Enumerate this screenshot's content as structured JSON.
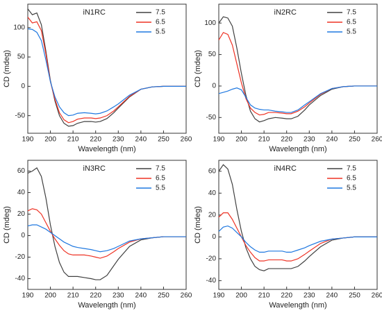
{
  "chart_data": [
    {
      "type": "line",
      "title": "iN1RC",
      "x_label": "Wavelength (nm)",
      "y_label": "CD (mdeg)",
      "x": [
        190,
        192,
        194,
        196,
        198,
        200,
        202,
        204,
        206,
        208,
        210,
        212,
        215,
        218,
        220,
        222,
        225,
        228,
        230,
        235,
        240,
        245,
        250,
        255,
        260
      ],
      "xlim": [
        190,
        260
      ],
      "xticks": [
        190,
        200,
        210,
        220,
        230,
        240,
        250,
        260
      ],
      "ylim": [
        -80,
        140
      ],
      "yticks": [
        -50,
        0,
        50,
        100
      ],
      "legend": "upper right",
      "series": [
        {
          "name": "7.5",
          "color": "#404040",
          "values": [
            132,
            122,
            125,
            105,
            60,
            10,
            -25,
            -50,
            -63,
            -68,
            -67,
            -63,
            -60,
            -60,
            -61,
            -60,
            -55,
            -45,
            -37,
            -18,
            -5,
            -1,
            0,
            0,
            0
          ]
        },
        {
          "name": "6.5",
          "color": "#ee3224",
          "values": [
            118,
            108,
            110,
            95,
            55,
            8,
            -22,
            -45,
            -57,
            -62,
            -60,
            -56,
            -54,
            -54,
            -55,
            -54,
            -50,
            -42,
            -35,
            -17,
            -5,
            -1,
            0,
            0,
            0
          ]
        },
        {
          "name": "5.5",
          "color": "#1f78e0",
          "values": [
            98,
            97,
            92,
            78,
            45,
            8,
            -18,
            -35,
            -45,
            -50,
            -49,
            -46,
            -45,
            -46,
            -47,
            -46,
            -42,
            -35,
            -30,
            -15,
            -5,
            -1,
            0,
            0,
            0
          ]
        }
      ]
    },
    {
      "type": "line",
      "title": "iN2RC",
      "x_label": "Wavelength (nm)",
      "y_label": "CD (mdeg)",
      "x": [
        190,
        192,
        194,
        196,
        198,
        200,
        202,
        204,
        206,
        208,
        210,
        212,
        215,
        218,
        220,
        222,
        225,
        228,
        230,
        235,
        240,
        245,
        250,
        255,
        260
      ],
      "xlim": [
        190,
        260
      ],
      "xticks": [
        190,
        200,
        210,
        220,
        230,
        240,
        250,
        260
      ],
      "ylim": [
        -75,
        130
      ],
      "yticks": [
        -50,
        0,
        50,
        100
      ],
      "legend": "upper right",
      "series": [
        {
          "name": "7.5",
          "color": "#404040",
          "values": [
            100,
            110,
            108,
            95,
            60,
            20,
            -15,
            -40,
            -52,
            -57,
            -55,
            -52,
            -50,
            -51,
            -52,
            -52,
            -48,
            -38,
            -30,
            -15,
            -5,
            -1,
            0,
            0,
            0
          ]
        },
        {
          "name": "6.5",
          "color": "#ee3224",
          "values": [
            73,
            85,
            82,
            65,
            35,
            5,
            -20,
            -35,
            -42,
            -46,
            -45,
            -42,
            -42,
            -43,
            -44,
            -44,
            -40,
            -33,
            -27,
            -13,
            -4,
            -1,
            0,
            0,
            0
          ]
        },
        {
          "name": "5.5",
          "color": "#1f78e0",
          "values": [
            -12,
            -10,
            -8,
            -5,
            -3,
            -6,
            -18,
            -30,
            -35,
            -37,
            -38,
            -38,
            -40,
            -41,
            -42,
            -42,
            -38,
            -30,
            -25,
            -12,
            -4,
            -1,
            0,
            0,
            0
          ]
        }
      ]
    },
    {
      "type": "line",
      "title": "iN3RC",
      "x_label": "Wavelength (nm)",
      "y_label": "CD (mdeg)",
      "x": [
        190,
        192,
        194,
        196,
        198,
        200,
        202,
        204,
        206,
        208,
        210,
        212,
        215,
        218,
        220,
        222,
        225,
        228,
        230,
        235,
        240,
        245,
        250,
        255,
        260
      ],
      "xlim": [
        190,
        260
      ],
      "xticks": [
        190,
        200,
        210,
        220,
        230,
        240,
        250,
        260
      ],
      "ylim": [
        -50,
        70
      ],
      "yticks": [
        -40,
        -20,
        0,
        20,
        40,
        60
      ],
      "legend": "upper right",
      "series": [
        {
          "name": "7.5",
          "color": "#404040",
          "values": [
            58,
            60,
            63,
            55,
            35,
            10,
            -10,
            -25,
            -34,
            -38,
            -38,
            -38,
            -39,
            -40,
            -41,
            -41,
            -37,
            -28,
            -22,
            -10,
            -4,
            -2,
            -1,
            -1,
            -1
          ]
        },
        {
          "name": "6.5",
          "color": "#ee3224",
          "values": [
            23,
            25,
            24,
            20,
            12,
            4,
            -3,
            -9,
            -14,
            -17,
            -18,
            -18,
            -18,
            -19,
            -20,
            -21,
            -19,
            -15,
            -12,
            -6,
            -3,
            -2,
            -1,
            -1,
            -1
          ]
        },
        {
          "name": "5.5",
          "color": "#1f78e0",
          "values": [
            9,
            10,
            10,
            8,
            6,
            3,
            0,
            -3,
            -6,
            -8,
            -10,
            -11,
            -12,
            -13,
            -14,
            -15,
            -14,
            -12,
            -10,
            -5,
            -3,
            -2,
            -1,
            -1,
            -1
          ]
        }
      ]
    },
    {
      "type": "line",
      "title": "iN4RC",
      "x_label": "Wavelength (nm)",
      "y_label": "CD (mdeg)",
      "x": [
        190,
        192,
        194,
        196,
        198,
        200,
        202,
        204,
        206,
        208,
        210,
        212,
        215,
        218,
        220,
        222,
        225,
        228,
        230,
        235,
        240,
        245,
        250,
        255,
        260
      ],
      "xlim": [
        190,
        260
      ],
      "xticks": [
        190,
        200,
        210,
        220,
        230,
        240,
        250,
        260
      ],
      "ylim": [
        -48,
        70
      ],
      "yticks": [
        -40,
        -20,
        0,
        20,
        40,
        60
      ],
      "legend": "upper right",
      "series": [
        {
          "name": "7.5",
          "color": "#404040",
          "values": [
            60,
            66,
            62,
            48,
            25,
            5,
            -10,
            -20,
            -27,
            -30,
            -31,
            -29,
            -29,
            -29,
            -29,
            -29,
            -27,
            -22,
            -18,
            -9,
            -3,
            -1,
            0,
            0,
            0
          ]
        },
        {
          "name": "6.5",
          "color": "#ee3224",
          "values": [
            18,
            22,
            22,
            16,
            8,
            0,
            -8,
            -14,
            -19,
            -22,
            -22,
            -21,
            -21,
            -21,
            -22,
            -22,
            -20,
            -16,
            -13,
            -6,
            -2,
            -1,
            0,
            0,
            0
          ]
        },
        {
          "name": "5.5",
          "color": "#1f78e0",
          "values": [
            5,
            9,
            10,
            8,
            4,
            0,
            -5,
            -9,
            -12,
            -14,
            -14,
            -13,
            -13,
            -13,
            -14,
            -14,
            -12,
            -10,
            -8,
            -4,
            -2,
            -1,
            0,
            0,
            0
          ]
        }
      ]
    }
  ]
}
